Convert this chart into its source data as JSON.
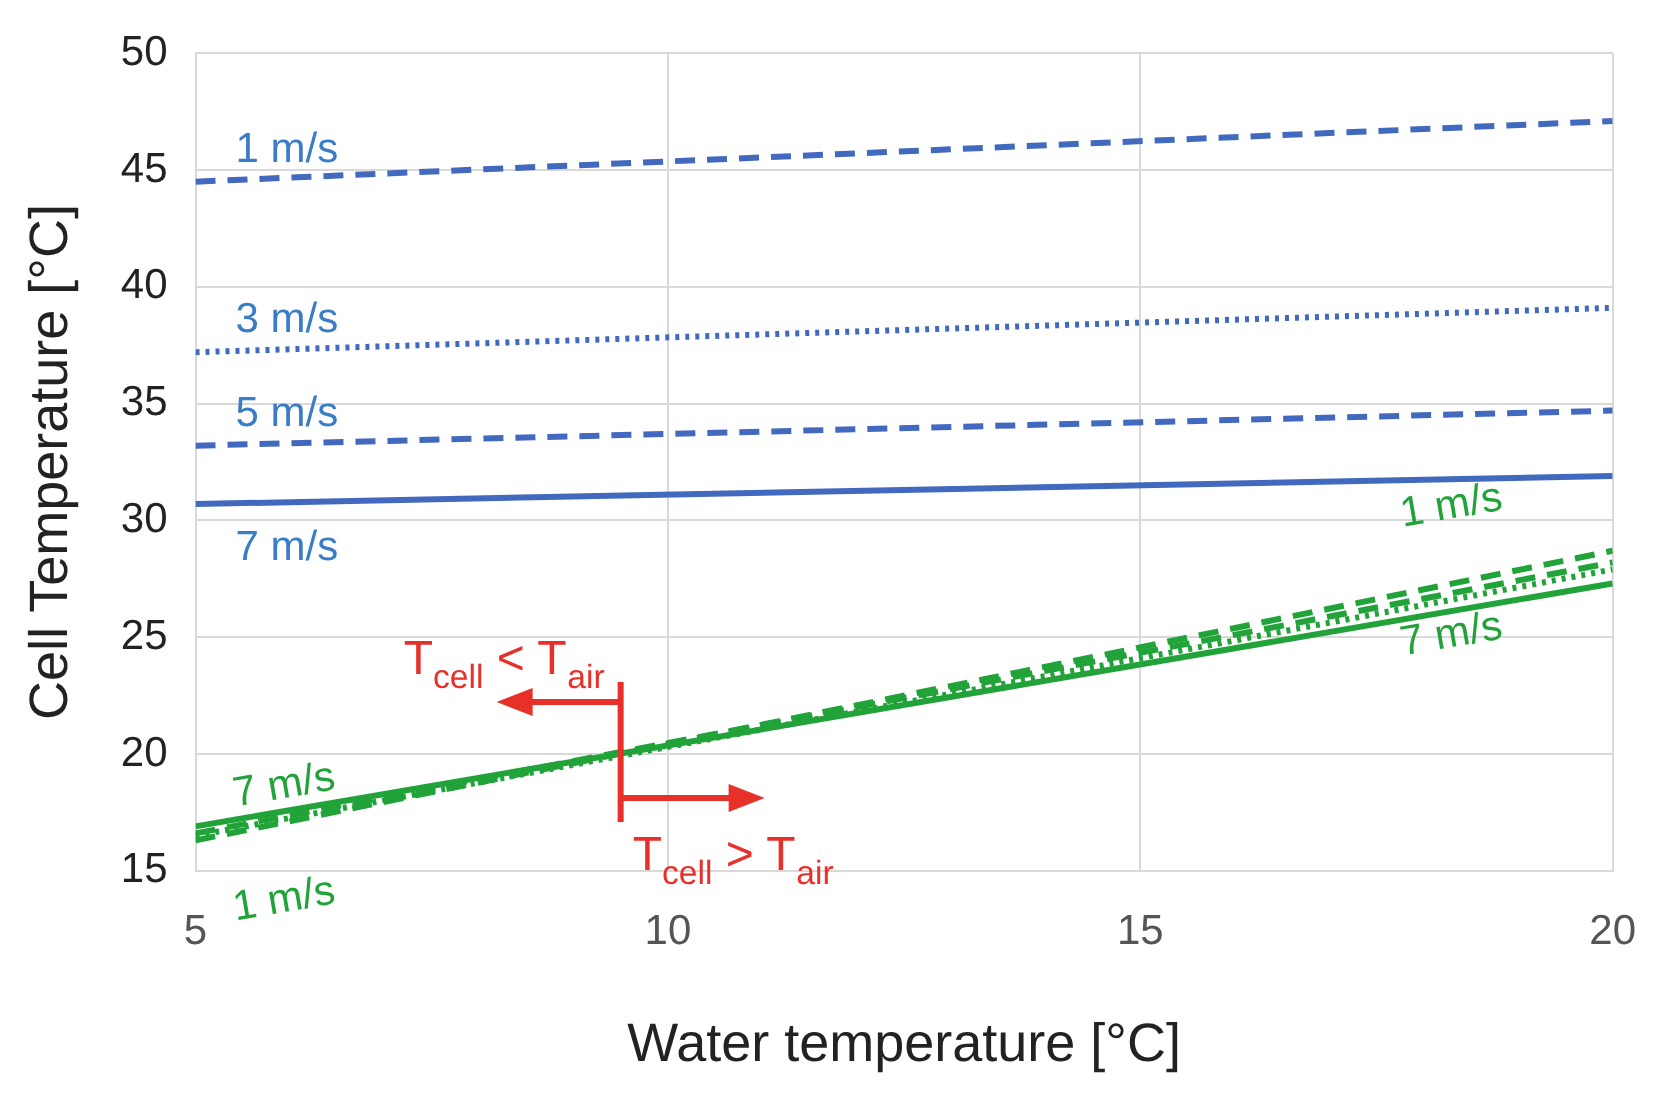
{
  "chart_data": {
    "type": "line",
    "xlabel": "Water temperature [°C]",
    "ylabel": "Cell Temperature [°C]",
    "x": [
      5,
      20
    ],
    "xlim": [
      5,
      20
    ],
    "xticks": [
      5,
      10,
      15,
      20
    ],
    "ylim": [
      15,
      50
    ],
    "yticks": [
      15,
      20,
      25,
      30,
      35,
      40,
      45,
      50
    ],
    "grid": true,
    "legend": false,
    "marker": "none",
    "series": [
      {
        "name": "1 m/s",
        "color": "#4169be",
        "line_style": "dashed",
        "values": [
          44.5,
          47.1
        ]
      },
      {
        "name": "3 m/s",
        "color": "#4169be",
        "line_style": "dotted",
        "values": [
          37.2,
          39.1
        ]
      },
      {
        "name": "5 m/s",
        "color": "#4169be",
        "line_style": "dashed",
        "values": [
          33.2,
          34.7
        ]
      },
      {
        "name": "7 m/s",
        "color": "#4169be",
        "line_style": "solid",
        "values": [
          30.7,
          31.9
        ]
      },
      {
        "name": "1 m/s",
        "color": "#22a33a",
        "line_style": "dashed",
        "values": [
          16.3,
          28.7
        ]
      },
      {
        "color": "#22a33a",
        "line_style": "dotted",
        "values": [
          16.5,
          27.9
        ]
      },
      {
        "color": "#22a33a",
        "line_style": "dashed",
        "values": [
          16.6,
          28.2
        ]
      },
      {
        "name": "7 m/s",
        "color": "#22a33a",
        "line_style": "solid",
        "values": [
          16.9,
          27.3
        ]
      }
    ],
    "annotations": [
      {
        "text": "T$_{cell}$ < T$_{air}$",
        "x": 9.5,
        "y": 20
      },
      {
        "text": "T$_{cell}$ > T$_{air}$",
        "x": 9.5,
        "y": 20
      }
    ]
  }
}
